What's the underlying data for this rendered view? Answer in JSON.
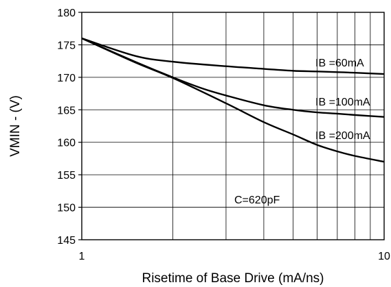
{
  "chart_data": {
    "type": "line",
    "xlabel": "Risetime of Base Drive (mA/ns)",
    "ylabel": "VMIN - (V)",
    "x_scale": "log",
    "xlim": [
      1,
      10
    ],
    "ylim": [
      145,
      180
    ],
    "x_ticks": [
      1,
      10
    ],
    "y_ticks": [
      145,
      150,
      155,
      160,
      165,
      170,
      175,
      180
    ],
    "grid": true,
    "annotations": [
      "C=620pF"
    ],
    "series": [
      {
        "name": "IB =60mA",
        "x": [
          1,
          1.5,
          2,
          3,
          4,
          5,
          6,
          7,
          8,
          10
        ],
        "y": [
          176,
          173.3,
          172.4,
          171.7,
          171.3,
          171.0,
          170.9,
          170.8,
          170.7,
          170.5
        ]
      },
      {
        "name": "IB =100mA",
        "x": [
          1,
          1.5,
          2,
          2.5,
          3,
          4,
          5,
          6,
          7,
          8,
          10
        ],
        "y": [
          176,
          172.4,
          170.0,
          168.3,
          167.2,
          165.7,
          165.0,
          164.6,
          164.4,
          164.2,
          163.9
        ]
      },
      {
        "name": "IB =200mA",
        "x": [
          1,
          1.5,
          2,
          3,
          4,
          5,
          6,
          7,
          8,
          10
        ],
        "y": [
          176,
          172.3,
          169.9,
          166.0,
          163.1,
          161.2,
          159.6,
          158.6,
          157.9,
          157.0
        ]
      }
    ]
  }
}
